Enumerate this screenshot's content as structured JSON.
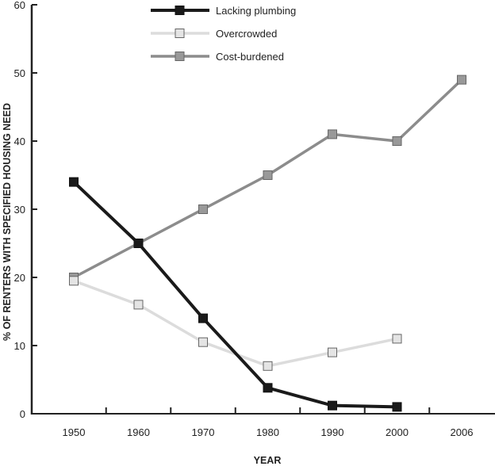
{
  "chart_data": {
    "type": "line",
    "title": "",
    "xlabel": "YEAR",
    "ylabel": "% OF RENTERS WITH SPECIFIED HOUSING NEED",
    "categories": [
      "1950",
      "1960",
      "1970",
      "1980",
      "1990",
      "2000",
      "2006"
    ],
    "ylim": [
      0,
      60
    ],
    "yticks": [
      "0",
      "10",
      "20",
      "30",
      "40",
      "50",
      "60"
    ],
    "grid": false,
    "legend_position": "top-center",
    "series": [
      {
        "name": "Lacking plumbing",
        "color": "#1a1a1a",
        "marker_fill": "#1a1a1a",
        "values": [
          34,
          25,
          14,
          3.8,
          1.2,
          1.0,
          null
        ]
      },
      {
        "name": "Overcrowded",
        "color": "#dcdcdc",
        "marker_fill": "#e4e4e4",
        "values": [
          19.5,
          16,
          10.5,
          7,
          9,
          11,
          null
        ]
      },
      {
        "name": "Cost-burdened",
        "color": "#8c8c8c",
        "marker_fill": "#999999",
        "values": [
          20,
          25,
          30,
          35,
          41,
          40,
          49
        ]
      }
    ]
  }
}
